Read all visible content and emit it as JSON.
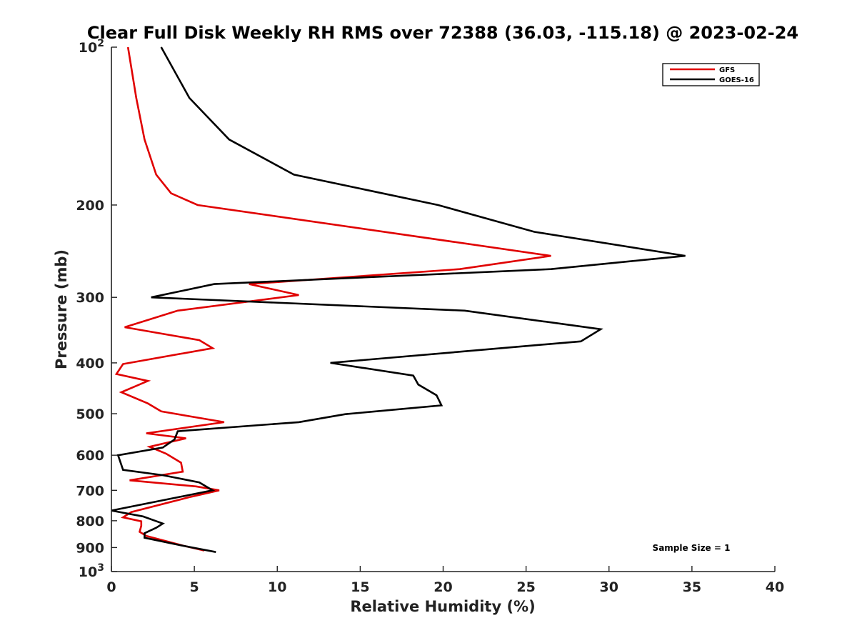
{
  "chart_data": {
    "type": "line",
    "title": "Clear Full Disk Weekly RH RMS over 72388 (36.03, -115.18) @ 2023-02-24",
    "xlabel": "Relative Humidity (%)",
    "ylabel": "Pressure (mb)",
    "xlim": [
      0,
      40
    ],
    "ylim": [
      1000,
      100
    ],
    "y_scale": "log",
    "y_reversed": true,
    "x_ticks": [
      0,
      5,
      10,
      15,
      20,
      25,
      30,
      35,
      40
    ],
    "y_ticks": [
      {
        "value": 100,
        "base": "10",
        "exp": "2"
      },
      {
        "value": 200,
        "label": "200"
      },
      {
        "value": 300,
        "label": "300"
      },
      {
        "value": 400,
        "label": "400"
      },
      {
        "value": 500,
        "label": "500"
      },
      {
        "value": 600,
        "label": "600"
      },
      {
        "value": 700,
        "label": "700"
      },
      {
        "value": 800,
        "label": "800"
      },
      {
        "value": 900,
        "label": "900"
      },
      {
        "value": 1000,
        "base": "10",
        "exp": "3"
      }
    ],
    "grid": false,
    "legend_position": "top-right",
    "series": [
      {
        "name": "GFS",
        "color": "#e00000",
        "points": [
          [
            1.0,
            100
          ],
          [
            1.5,
            125
          ],
          [
            2.0,
            150
          ],
          [
            2.7,
            175
          ],
          [
            3.6,
            190
          ],
          [
            5.2,
            200
          ],
          [
            26.5,
            250
          ],
          [
            21.0,
            265
          ],
          [
            8.3,
            283
          ],
          [
            11.3,
            297
          ],
          [
            4.0,
            318
          ],
          [
            0.8,
            342
          ],
          [
            5.3,
            362
          ],
          [
            6.1,
            375
          ],
          [
            0.7,
            402
          ],
          [
            0.3,
            420
          ],
          [
            2.2,
            433
          ],
          [
            0.6,
            455
          ],
          [
            2.2,
            478
          ],
          [
            3.0,
            495
          ],
          [
            6.8,
            519
          ],
          [
            2.1,
            545
          ],
          [
            4.5,
            557
          ],
          [
            2.3,
            578
          ],
          [
            3.3,
            596
          ],
          [
            4.2,
            620
          ],
          [
            4.3,
            645
          ],
          [
            1.1,
            670
          ],
          [
            5.1,
            688
          ],
          [
            6.5,
            700
          ],
          [
            4.8,
            720
          ],
          [
            1.2,
            770
          ],
          [
            0.7,
            788
          ],
          [
            1.8,
            802
          ],
          [
            1.8,
            818
          ],
          [
            1.7,
            840
          ],
          [
            2.1,
            855
          ],
          [
            4.3,
            892
          ],
          [
            5.6,
            912
          ]
        ]
      },
      {
        "name": "GOES-16",
        "color": "#000000",
        "points": [
          [
            3.0,
            100
          ],
          [
            4.7,
            125
          ],
          [
            7.1,
            150
          ],
          [
            11.0,
            175
          ],
          [
            19.7,
            200
          ],
          [
            25.5,
            225
          ],
          [
            34.6,
            250
          ],
          [
            26.5,
            265
          ],
          [
            6.2,
            283
          ],
          [
            2.4,
            300
          ],
          [
            21.3,
            318
          ],
          [
            29.5,
            345
          ],
          [
            28.3,
            364
          ],
          [
            13.2,
            400
          ],
          [
            18.2,
            423
          ],
          [
            18.5,
            440
          ],
          [
            19.6,
            461
          ],
          [
            19.9,
            482
          ],
          [
            14.1,
            501
          ],
          [
            11.3,
            519
          ],
          [
            4.0,
            540
          ],
          [
            3.8,
            560
          ],
          [
            3.1,
            580
          ],
          [
            0.4,
            600
          ],
          [
            0.7,
            640
          ],
          [
            3.1,
            655
          ],
          [
            5.3,
            676
          ],
          [
            6.1,
            700
          ],
          [
            0.0,
            765
          ],
          [
            1.9,
            785
          ],
          [
            3.1,
            810
          ],
          [
            2.7,
            825
          ],
          [
            2.0,
            845
          ],
          [
            2.0,
            862
          ],
          [
            4.1,
            890
          ],
          [
            6.3,
            918
          ]
        ]
      }
    ],
    "annotation": "Sample Size = 1"
  }
}
